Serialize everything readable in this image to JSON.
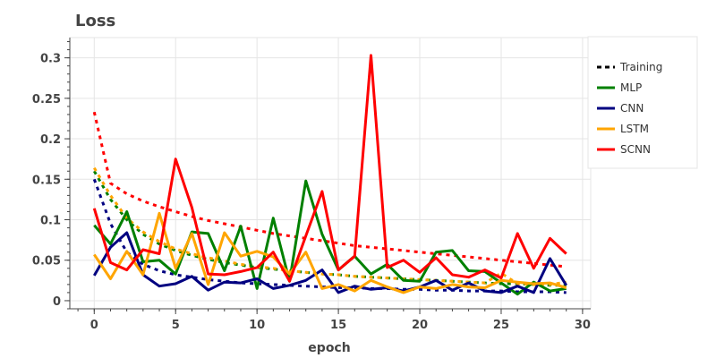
{
  "chart_data": {
    "type": "line",
    "title": "Loss",
    "xlabel": "epoch",
    "ylabel": "",
    "xlim": [
      -1.5,
      30.5
    ],
    "ylim": [
      -0.01,
      0.325
    ],
    "x_ticks": [
      0,
      5,
      10,
      15,
      20,
      25,
      30
    ],
    "y_ticks": [
      0,
      0.05,
      0.1,
      0.15,
      0.2,
      0.25,
      0.3
    ],
    "x_tick_labels": [
      "0",
      "5",
      "10",
      "15",
      "20",
      "25",
      "30"
    ],
    "y_tick_labels": [
      "0",
      "0.05",
      "0.1",
      "0.15",
      "0.2",
      "0.25",
      "0.3"
    ],
    "grid": true,
    "legend_position": "right",
    "legend": [
      {
        "label": "Training",
        "color": "#000000",
        "dash": "dashed"
      },
      {
        "label": "MLP",
        "color": "#008000",
        "dash": "solid"
      },
      {
        "label": "CNN",
        "color": "#000080",
        "dash": "solid"
      },
      {
        "label": "LSTM",
        "color": "#FFA500",
        "dash": "solid"
      },
      {
        "label": "SCNN",
        "color": "#FF0000",
        "dash": "solid"
      }
    ],
    "x": [
      0,
      1,
      2,
      3,
      4,
      5,
      6,
      7,
      8,
      9,
      10,
      11,
      12,
      13,
      14,
      15,
      16,
      17,
      18,
      19,
      20,
      21,
      22,
      23,
      24,
      25,
      26,
      27,
      28,
      29
    ],
    "series": [
      {
        "name": "MLP",
        "color": "#008000",
        "kind": "validation",
        "values": [
          0.093,
          0.07,
          0.11,
          0.048,
          0.05,
          0.033,
          0.085,
          0.083,
          0.037,
          0.092,
          0.015,
          0.102,
          0.024,
          0.148,
          0.082,
          0.038,
          0.055,
          0.033,
          0.045,
          0.025,
          0.024,
          0.06,
          0.062,
          0.037,
          0.036,
          0.022,
          0.008,
          0.023,
          0.012,
          0.015
        ]
      },
      {
        "name": "MLP",
        "color": "#008000",
        "kind": "training",
        "values": [
          0.16,
          0.125,
          0.1,
          0.082,
          0.07,
          0.062,
          0.056,
          0.051,
          0.047,
          0.044,
          0.041,
          0.039,
          0.037,
          0.035,
          0.033,
          0.032,
          0.03,
          0.029,
          0.028,
          0.027,
          0.026,
          0.025,
          0.024,
          0.023,
          0.022,
          0.021,
          0.021,
          0.02,
          0.019,
          0.019
        ]
      },
      {
        "name": "CNN",
        "color": "#000080",
        "kind": "validation",
        "values": [
          0.031,
          0.066,
          0.084,
          0.032,
          0.018,
          0.021,
          0.03,
          0.013,
          0.023,
          0.022,
          0.027,
          0.015,
          0.019,
          0.025,
          0.038,
          0.01,
          0.018,
          0.014,
          0.016,
          0.012,
          0.017,
          0.025,
          0.013,
          0.022,
          0.012,
          0.01,
          0.018,
          0.01,
          0.052,
          0.019
        ]
      },
      {
        "name": "CNN",
        "color": "#000080",
        "kind": "training",
        "values": [
          0.15,
          0.095,
          0.06,
          0.045,
          0.037,
          0.032,
          0.029,
          0.026,
          0.024,
          0.022,
          0.021,
          0.02,
          0.019,
          0.018,
          0.017,
          0.016,
          0.016,
          0.015,
          0.015,
          0.014,
          0.014,
          0.013,
          0.013,
          0.012,
          0.012,
          0.012,
          0.011,
          0.011,
          0.011,
          0.01
        ]
      },
      {
        "name": "LSTM",
        "color": "#FFA500",
        "kind": "validation",
        "values": [
          0.057,
          0.027,
          0.061,
          0.032,
          0.108,
          0.04,
          0.083,
          0.02,
          0.084,
          0.055,
          0.061,
          0.054,
          0.033,
          0.06,
          0.015,
          0.02,
          0.012,
          0.025,
          0.017,
          0.01,
          0.017,
          0.015,
          0.02,
          0.017,
          0.016,
          0.025,
          0.023,
          0.021,
          0.022,
          0.016
        ]
      },
      {
        "name": "LSTM",
        "color": "#FFA500",
        "kind": "training",
        "values": [
          0.164,
          0.13,
          0.102,
          0.085,
          0.073,
          0.064,
          0.058,
          0.053,
          0.049,
          0.045,
          0.042,
          0.04,
          0.037,
          0.035,
          0.033,
          0.032,
          0.03,
          0.029,
          0.028,
          0.027,
          0.026,
          0.025,
          0.024,
          0.023,
          0.022,
          0.034,
          0.021,
          0.02,
          0.02,
          0.023
        ]
      },
      {
        "name": "SCNN",
        "color": "#FF0000",
        "kind": "validation",
        "values": [
          0.114,
          0.047,
          0.038,
          0.063,
          0.058,
          0.175,
          0.115,
          0.033,
          0.032,
          0.036,
          0.041,
          0.06,
          0.024,
          0.08,
          0.135,
          0.038,
          0.055,
          0.303,
          0.041,
          0.05,
          0.035,
          0.053,
          0.032,
          0.029,
          0.038,
          0.028,
          0.083,
          0.04,
          0.077,
          0.058
        ]
      },
      {
        "name": "SCNN",
        "color": "#FF0000",
        "kind": "training",
        "values": [
          0.233,
          0.145,
          0.132,
          0.123,
          0.116,
          0.11,
          0.104,
          0.099,
          0.095,
          0.091,
          0.087,
          0.083,
          0.08,
          0.077,
          0.074,
          0.071,
          0.068,
          0.066,
          0.064,
          0.062,
          0.06,
          0.058,
          0.056,
          0.054,
          0.052,
          0.05,
          0.048,
          0.046,
          0.044,
          0.042
        ]
      }
    ]
  }
}
